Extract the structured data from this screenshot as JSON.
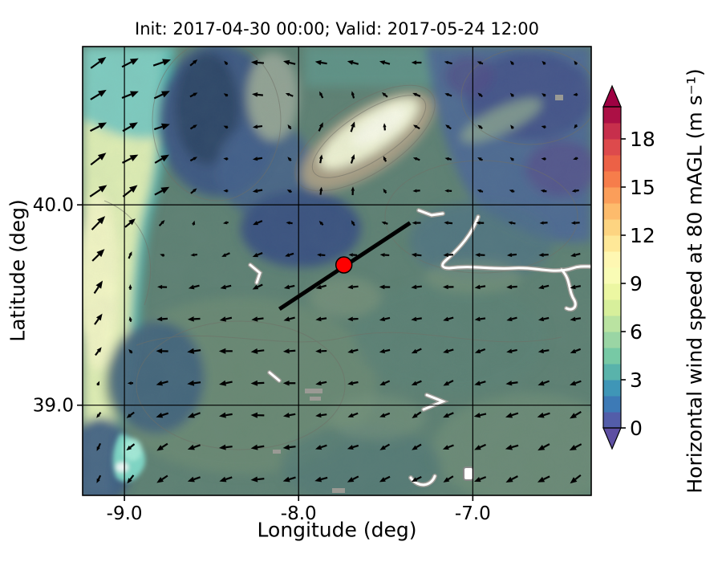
{
  "chart_data": {
    "type": "heatmap",
    "subtype": "filled-contour wind speed map with quiver overlay",
    "title": "Init: 2017-04-30 00:00; Valid: 2017-05-24 12:00",
    "xlabel": "Longitude (deg)",
    "ylabel": "Latitude (deg)",
    "x_tick_values": [
      -9.0,
      -8.0,
      -7.0
    ],
    "x_tick_labels": [
      "-9.0",
      "-8.0",
      "-7.0"
    ],
    "y_tick_values": [
      40.0,
      39.0
    ],
    "y_tick_labels": [
      "40.0",
      "39.0"
    ],
    "lon_range": [
      -9.24,
      -6.32
    ],
    "lat_range": [
      38.55,
      40.79
    ],
    "grid": true,
    "wind_grid": {
      "comment": "coarse 7x7 sampling of plotted quiver arrows; u eastward, v northward (m/s)",
      "lon": [
        -9.24,
        -8.75,
        -8.27,
        -7.78,
        -7.29,
        -6.81,
        -6.32
      ],
      "lat": [
        40.79,
        40.42,
        40.05,
        39.67,
        39.3,
        38.92,
        38.55
      ],
      "u_ms": [
        [
          6.1,
          6.3,
          -4.9,
          -6.0,
          -4.0,
          -1.4,
          -0.7
        ],
        [
          5.7,
          5.6,
          -4.0,
          2.5,
          -2.6,
          -1.0,
          -0.7
        ],
        [
          6.1,
          5.2,
          -3.8,
          1.0,
          -3.0,
          -1.9,
          -3.0
        ],
        [
          5.7,
          -3.9,
          -3.5,
          -4.0,
          -4.0,
          -4.0,
          -3.9
        ],
        [
          3.9,
          -5.0,
          -5.0,
          -3.9,
          -3.8,
          -3.9,
          -3.8
        ],
        [
          -1.0,
          -4.7,
          -5.0,
          -3.9,
          -3.5,
          -4.8,
          -4.3
        ],
        [
          -0.5,
          -4.1,
          -4.9,
          -4.7,
          -3.3,
          -4.5,
          -4.1
        ]
      ],
      "v_ms": [
        [
          3.5,
          3.0,
          0.9,
          0.5,
          -0.3,
          1.4,
          1.9
        ],
        [
          4.0,
          2.1,
          -0.3,
          4.3,
          1.5,
          1.7,
          -1.9
        ],
        [
          5.1,
          3.0,
          -1.4,
          3.9,
          -0.3,
          0.7,
          -0.3
        ],
        [
          5.7,
          -0.7,
          -2.0,
          -0.3,
          0.0,
          -0.3,
          -0.7
        ],
        [
          4.6,
          -0.4,
          0.0,
          -0.7,
          -1.4,
          -0.7,
          -1.4
        ],
        [
          -2.8,
          -1.7,
          -0.4,
          -1.0,
          -2.0,
          -1.3,
          -2.5
        ],
        [
          -3.0,
          -2.9,
          -0.9,
          -1.7,
          -2.3,
          -2.1,
          -2.9
        ]
      ]
    },
    "field_regions": [
      {
        "name": "offshore-atlantic-strip",
        "approx_speed_ms": 8,
        "color": "#e9f2b2"
      },
      {
        "name": "coastal-transition-band",
        "approx_speed_ms": 5,
        "color": "#5bbcb4"
      },
      {
        "name": "northwest-interior-minimum",
        "approx_speed_ms": 2,
        "color": "#3c5882"
      },
      {
        "name": "central-mountain-ridge-maximum",
        "approx_speed_ms": 10,
        "color": "#f2f5da"
      },
      {
        "name": "northeast-interior-weak",
        "approx_speed_ms": 2,
        "color": "#4e6896"
      },
      {
        "name": "central-southern-interior",
        "approx_speed_ms": 4,
        "color": "#5e8173"
      }
    ],
    "markers": {
      "site_marker": {
        "lon": -7.74,
        "lat": 39.7,
        "fill": "#ff0000",
        "edge": "#000000"
      },
      "transect_line": {
        "from": {
          "lon": -8.11,
          "lat": 39.48
        },
        "to": {
          "lon": -7.36,
          "lat": 39.91
        },
        "color": "#000000"
      }
    }
  },
  "colorbar": {
    "label": "Horizontal wind speed at 80 mAGL (m s⁻¹)",
    "tick_values": [
      0,
      3,
      6,
      9,
      12,
      15,
      18
    ],
    "vmin": 0,
    "vmax": 20,
    "extend": "both",
    "extend_over_color": "#9e0142",
    "extend_under_color": "#5e4fa2",
    "segment_colors": [
      "#535da9",
      "#3d7ab6",
      "#3f96b7",
      "#59b3ab",
      "#77c9a5",
      "#9ad5a4",
      "#bae3a1",
      "#d7ef9b",
      "#ecf7a2",
      "#f9fcb5",
      "#fef7b2",
      "#fee898",
      "#fdd481",
      "#fdbb6c",
      "#fb9e5a",
      "#f67d4b",
      "#ec6146",
      "#dd4a4c",
      "#c72f4c",
      "#ac1045"
    ]
  },
  "colors": {
    "figure_background": "#ffffff",
    "frame": "#000000",
    "arrows": "#000000"
  }
}
